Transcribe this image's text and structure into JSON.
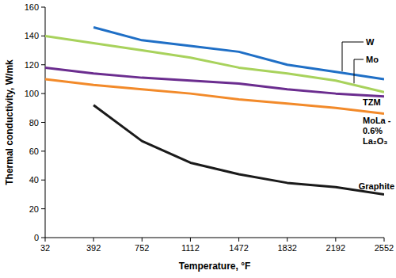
{
  "chart_data": {
    "type": "line",
    "x_label": "Temperature, °F",
    "y_label": "Thermal conductivity, W/mk",
    "x": [
      32,
      392,
      752,
      1112,
      1472,
      1832,
      2192,
      2552
    ],
    "xlim": [
      32,
      2552
    ],
    "xticks": [
      32,
      392,
      752,
      1112,
      1472,
      1832,
      2192,
      2552
    ],
    "ylim": [
      0,
      160
    ],
    "yticks": [
      0,
      20,
      40,
      60,
      80,
      100,
      120,
      140,
      160
    ],
    "grid": false,
    "series": [
      {
        "name": "W",
        "color": "#1f6fc6",
        "values": [
          null,
          146,
          137,
          133,
          129,
          120,
          115,
          110
        ]
      },
      {
        "name": "Mo",
        "color": "#a8d25c",
        "values": [
          140,
          135,
          130,
          125,
          118,
          114,
          109,
          101
        ]
      },
      {
        "name": "TZM",
        "color": "#6b2d8f",
        "values": [
          118,
          114,
          111,
          109,
          107,
          103,
          100,
          98
        ]
      },
      {
        "name": "MoLa - 0.6% La₂O₃",
        "color": "#f28a2a",
        "values": [
          110,
          106,
          103,
          100,
          96,
          93,
          90,
          86
        ]
      },
      {
        "name": "Graphite",
        "color": "#1a1a1a",
        "values": [
          null,
          92,
          67,
          52,
          44,
          38,
          35,
          30
        ]
      }
    ]
  }
}
